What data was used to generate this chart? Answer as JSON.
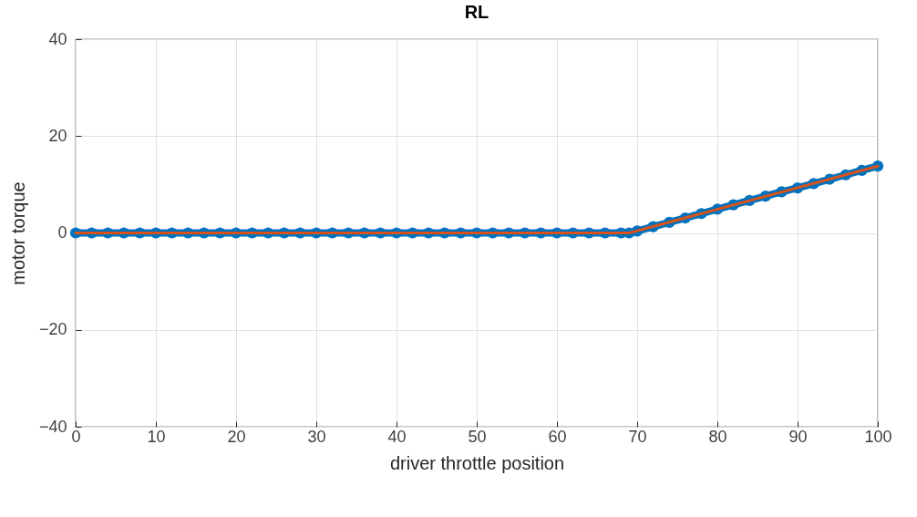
{
  "chart_data": {
    "type": "line",
    "title": "RL",
    "xlabel": "driver throttle position",
    "ylabel": "motor torque",
    "xlim": [
      0,
      100
    ],
    "ylim": [
      -40,
      40
    ],
    "xticks": [
      0,
      10,
      20,
      30,
      40,
      50,
      60,
      70,
      80,
      90,
      100
    ],
    "yticks": [
      -40,
      -20,
      0,
      20,
      40
    ],
    "grid": true,
    "series": [
      {
        "color": "#0072bd",
        "marker": "circle",
        "x": [
          0,
          2,
          4,
          6,
          8,
          10,
          12,
          14,
          16,
          18,
          20,
          22,
          24,
          26,
          28,
          30,
          32,
          34,
          36,
          38,
          40,
          42,
          44,
          46,
          48,
          50,
          52,
          54,
          56,
          58,
          60,
          62,
          64,
          66,
          68,
          69,
          70,
          72,
          74,
          76,
          78,
          80,
          82,
          84,
          86,
          88,
          90,
          92,
          94,
          96,
          98,
          100
        ],
        "values": [
          0,
          0,
          0,
          0,
          0,
          0,
          0,
          0,
          0,
          0,
          0,
          0,
          0,
          0,
          0,
          0,
          0,
          0,
          0,
          0,
          0,
          0,
          0,
          0,
          0,
          0,
          0,
          0,
          0,
          0,
          0,
          0,
          0,
          0,
          0,
          0,
          0.4,
          1.3,
          2.2,
          3.1,
          4.0,
          4.9,
          5.8,
          6.7,
          7.6,
          8.5,
          9.3,
          10.2,
          11.1,
          12.0,
          12.9,
          13.8
        ]
      },
      {
        "color": "#d95319",
        "marker": "none",
        "x": [
          0,
          69,
          100
        ],
        "values": [
          0,
          0,
          13.8
        ]
      }
    ]
  }
}
